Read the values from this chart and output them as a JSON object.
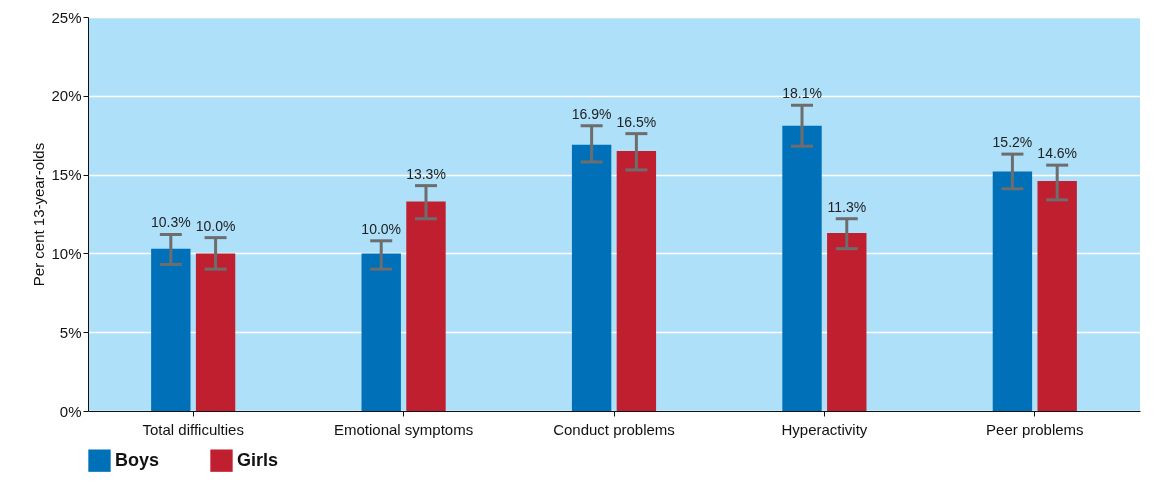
{
  "chart_data": {
    "type": "bar",
    "ylabel": "Per cent 13-year-olds",
    "categories": [
      "Total difficulties",
      "Emotional symptoms",
      "Conduct problems",
      "Hyperactivity",
      "Peer problems"
    ],
    "series": [
      {
        "name": "Boys",
        "color": "#0070b8",
        "values": [
          10.3,
          10.0,
          16.9,
          18.1,
          15.2
        ],
        "value_labels": [
          "10.3%",
          "10.0%",
          "16.9%",
          "18.1%",
          "15.2%"
        ],
        "errors": [
          [
            9.3,
            11.2
          ],
          [
            9.0,
            10.8
          ],
          [
            15.8,
            18.1
          ],
          [
            16.8,
            19.4
          ],
          [
            14.1,
            16.3
          ]
        ]
      },
      {
        "name": "Girls",
        "color": "#c01f30",
        "values": [
          10.0,
          13.3,
          16.5,
          11.3,
          14.6
        ],
        "value_labels": [
          "10.0%",
          "13.3%",
          "16.5%",
          "11.3%",
          "14.6%"
        ],
        "errors": [
          [
            9.0,
            11.0
          ],
          [
            12.2,
            14.3
          ],
          [
            15.3,
            17.6
          ],
          [
            10.3,
            12.2
          ],
          [
            13.4,
            15.6
          ]
        ]
      }
    ],
    "ylim": [
      0,
      25
    ],
    "yticks": [
      {
        "value": 0,
        "label": "0%"
      },
      {
        "value": 5,
        "label": "5%"
      },
      {
        "value": 10,
        "label": "10%"
      },
      {
        "value": 15,
        "label": "15%"
      },
      {
        "value": 20,
        "label": "20%"
      },
      {
        "value": 25,
        "label": "25%"
      }
    ],
    "grid": "y",
    "legend": "bottom"
  }
}
